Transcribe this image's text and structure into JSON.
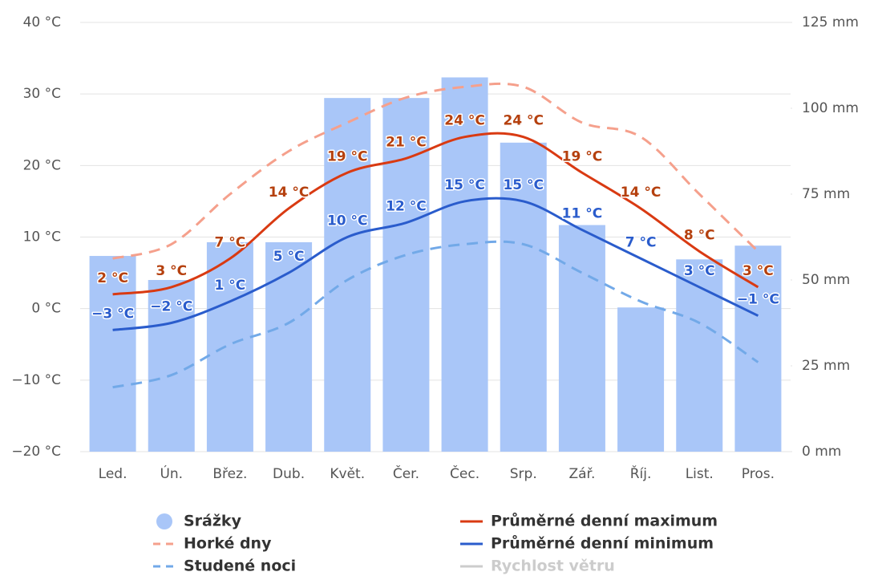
{
  "chart_data": {
    "type": "bar",
    "categories": [
      "Led.",
      "Ún.",
      "Břez.",
      "Dub.",
      "Květ.",
      "Čer.",
      "Čec.",
      "Srp.",
      "Zář.",
      "Říj.",
      "List.",
      "Pros."
    ],
    "ylim": [
      -20,
      40
    ],
    "yticks": [
      {
        "value": -20,
        "label": "−20 °C"
      },
      {
        "value": -10,
        "label": "−10 °C"
      },
      {
        "value": 0,
        "label": "0 °C"
      },
      {
        "value": 10,
        "label": "10 °C"
      },
      {
        "value": 20,
        "label": "20 °C"
      },
      {
        "value": 30,
        "label": "30 °C"
      },
      {
        "value": 40,
        "label": "40 °C"
      }
    ],
    "y2lim": [
      0,
      125
    ],
    "y2ticks": [
      {
        "value": 0,
        "label": "0 mm"
      },
      {
        "value": 25,
        "label": "25 mm"
      },
      {
        "value": 50,
        "label": "50 mm"
      },
      {
        "value": 75,
        "label": "75 mm"
      },
      {
        "value": 100,
        "label": "100 mm"
      },
      {
        "value": 125,
        "label": "125 mm"
      }
    ],
    "grid": true,
    "series": [
      {
        "name": "Srážky",
        "type": "bar",
        "axis": "y2",
        "color": "#a9c6f8",
        "values": [
          57,
          50,
          61,
          61,
          103,
          103,
          109,
          90,
          66,
          42,
          56,
          60
        ]
      },
      {
        "name": "Horké dny",
        "type": "line",
        "dashed": true,
        "color": "#f5a08c",
        "values": [
          7,
          9,
          16,
          22,
          26,
          29.5,
          31,
          31,
          26,
          24,
          16,
          8
        ]
      },
      {
        "name": "Studené noci",
        "type": "line",
        "dashed": true,
        "color": "#72a9e8",
        "values": [
          -11,
          -9.3,
          -5,
          -2,
          4,
          7.5,
          9,
          9,
          5,
          1,
          -2,
          -7.5
        ]
      },
      {
        "name": "Průměrné denní maximum",
        "type": "line",
        "color": "#d93a12",
        "label_color": "#b5400e",
        "values": [
          2,
          3,
          7,
          14,
          19,
          21,
          24,
          24,
          19,
          14,
          8,
          3
        ],
        "value_labels": [
          "2 °C",
          "3 °C",
          "7 °C",
          "14 °C",
          "19 °C",
          "21 °C",
          "24 °C",
          "24 °C",
          "19 °C",
          "14 °C",
          "8 °C",
          "3 °C"
        ]
      },
      {
        "name": "Průměrné denní minimum",
        "type": "line",
        "color": "#2a5ccc",
        "label_color": "#2a5ccc",
        "values": [
          -3,
          -2,
          1,
          5,
          10,
          12,
          15,
          15,
          11,
          7,
          3,
          -1
        ],
        "value_labels": [
          "−3 °C",
          "−2 °C",
          "1 °C",
          "5 °C",
          "10 °C",
          "12 °C",
          "15 °C",
          "15 °C",
          "11 °C",
          "7 °C",
          "3 °C",
          "−1 °C"
        ]
      }
    ],
    "inactive_series": [
      {
        "name": "Rychlost větru",
        "color": "#cccccc"
      }
    ]
  }
}
